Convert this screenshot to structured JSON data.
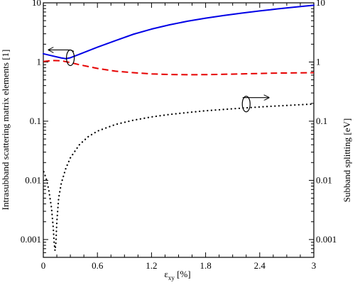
{
  "chart_data": {
    "type": "line",
    "xlabel_main": "ε",
    "xlabel_sub": "xy",
    "xlabel_unit": " [%]",
    "ylabel_left": "Intrasubband scattering matrix elements [1]",
    "ylabel_right": "Subband splitting [eV]",
    "xlim": [
      0,
      3
    ],
    "ylim": [
      0.0005,
      10
    ],
    "yscale": "log",
    "x_ticks": [
      0,
      0.6,
      1.2,
      1.8,
      2.4,
      3
    ],
    "x_tick_labels": [
      "0",
      "0.6",
      "1.2",
      "1.8",
      "2.4",
      "3"
    ],
    "y_ticks": [
      0.001,
      0.01,
      0.1,
      1,
      10
    ],
    "y_tick_labels": [
      "0.001",
      "0.01",
      "0.1",
      "1",
      "10"
    ],
    "grid": false,
    "series": [
      {
        "style": "solid",
        "color": "#0000e6",
        "axis": "left",
        "x": [
          0,
          0.1,
          0.2,
          0.25,
          0.3,
          0.4,
          0.5,
          0.6,
          0.8,
          1.0,
          1.2,
          1.4,
          1.6,
          1.8,
          2.0,
          2.2,
          2.4,
          2.6,
          2.8,
          3.0
        ],
        "y": [
          1.38,
          1.27,
          1.17,
          1.14,
          1.18,
          1.35,
          1.55,
          1.78,
          2.3,
          2.95,
          3.6,
          4.25,
          4.9,
          5.5,
          6.1,
          6.7,
          7.3,
          7.9,
          8.5,
          9.1
        ]
      },
      {
        "style": "dashed",
        "color": "#e60000",
        "axis": "left",
        "x": [
          0,
          0.1,
          0.2,
          0.3,
          0.4,
          0.6,
          0.8,
          1.0,
          1.2,
          1.4,
          1.6,
          1.8,
          2.0,
          2.2,
          2.4,
          2.6,
          2.8,
          3.0
        ],
        "y": [
          1.02,
          1.06,
          1.05,
          0.98,
          0.9,
          0.78,
          0.7,
          0.66,
          0.63,
          0.615,
          0.61,
          0.612,
          0.62,
          0.63,
          0.64,
          0.65,
          0.655,
          0.66
        ]
      },
      {
        "style": "dotted",
        "color": "#000000",
        "axis": "right",
        "x": [
          0.005,
          0.03,
          0.06,
          0.09,
          0.11,
          0.12,
          0.13,
          0.14,
          0.15,
          0.17,
          0.2,
          0.25,
          0.3,
          0.4,
          0.5,
          0.6,
          0.8,
          1.0,
          1.2,
          1.4,
          1.6,
          1.8,
          2.0,
          2.2,
          2.4,
          2.6,
          2.8,
          3.0
        ],
        "y": [
          0.014,
          0.011,
          0.007,
          0.0035,
          0.0016,
          0.0009,
          0.00065,
          0.0009,
          0.002,
          0.005,
          0.009,
          0.016,
          0.024,
          0.04,
          0.055,
          0.068,
          0.088,
          0.104,
          0.118,
          0.13,
          0.14,
          0.15,
          0.158,
          0.166,
          0.174,
          0.181,
          0.188,
          0.195
        ]
      }
    ],
    "annotations": [
      {
        "name": "left-axis-indicator",
        "ellipse_x": 0.3,
        "ellipse_y": 1.18,
        "arrow_to_x": 0.06,
        "arrow_to_y": 1.6,
        "direction": "left"
      },
      {
        "name": "right-axis-indicator",
        "ellipse_x": 2.25,
        "ellipse_y": 0.195,
        "arrow_to_x": 2.5,
        "arrow_to_y": 0.25,
        "direction": "right"
      }
    ]
  }
}
